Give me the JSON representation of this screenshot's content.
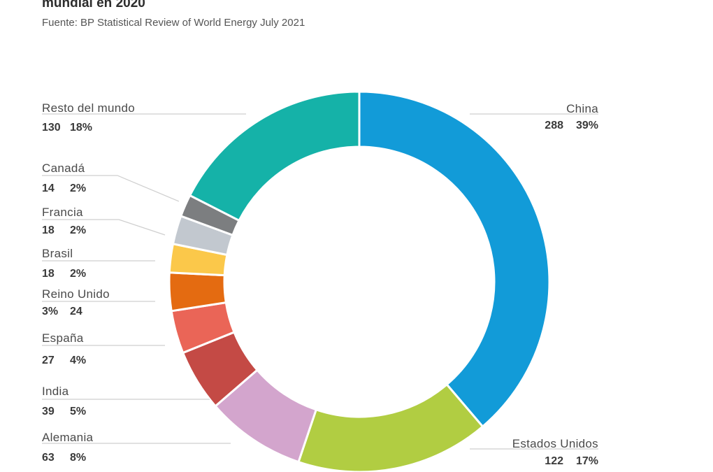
{
  "header": {
    "title": "mundial en 2020",
    "source": "Fuente: BP Statistical Review of World Energy July 2021"
  },
  "chart_data": {
    "type": "pie",
    "donut": true,
    "title": "mundial en 2020",
    "subtitle": "Fuente: BP Statistical Review of World Energy July 2021",
    "slices": [
      {
        "label": "China",
        "value": 288,
        "percent": "39%",
        "color": "#129bd8"
      },
      {
        "label": "Estados Unidos",
        "value": 122,
        "percent": "17%",
        "color": "#b1cd42"
      },
      {
        "label": "Alemania",
        "value": 63,
        "percent": "8%",
        "color": "#d3a5cd"
      },
      {
        "label": "India",
        "value": 39,
        "percent": "5%",
        "color": "#c44a45"
      },
      {
        "label": "España",
        "value": 27,
        "percent": "4%",
        "color": "#ea6557"
      },
      {
        "label": "Reino Unido",
        "value": 24,
        "percent": "3%",
        "color": "#e46b11"
      },
      {
        "label": "Brasil",
        "value": 18,
        "percent": "2%",
        "color": "#fbc84a"
      },
      {
        "label": "Francia",
        "value": 18,
        "percent": "2%",
        "color": "#c2c8cf"
      },
      {
        "label": "Canadá",
        "value": 14,
        "percent": "2%",
        "color": "#7c7e80"
      },
      {
        "label": "Resto del mundo",
        "value": 130,
        "percent": "18%",
        "color": "#15b2a8"
      }
    ]
  }
}
